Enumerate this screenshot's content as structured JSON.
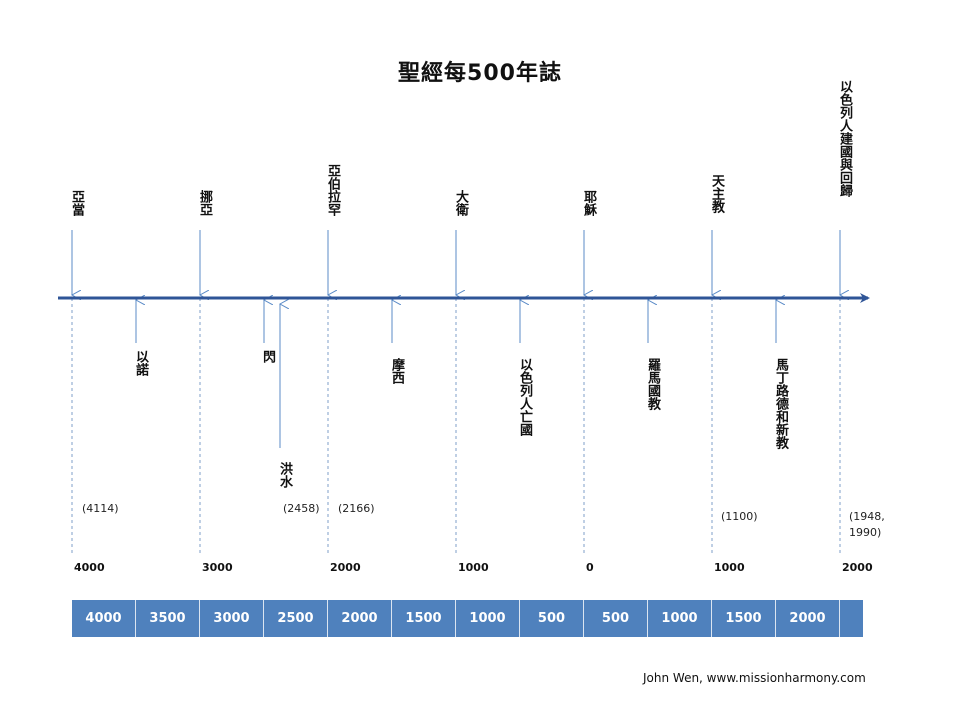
{
  "title": "聖經每500年誌",
  "upper_events": [
    {
      "label": "亞當"
    },
    {
      "label": "挪亞"
    },
    {
      "label": "亞伯拉罕"
    },
    {
      "label": "大衛"
    },
    {
      "label": "耶穌"
    },
    {
      "label": "天主教"
    },
    {
      "label": "以色列人建國與回歸"
    }
  ],
  "lower_events": [
    {
      "label": "以諾"
    },
    {
      "label": "閃"
    },
    {
      "label": "洪水"
    },
    {
      "label": "摩西"
    },
    {
      "label": "以色列人亡國"
    },
    {
      "label": "羅馬國教"
    },
    {
      "label": "馬丁路德和新教"
    }
  ],
  "year_notes": [
    "(4114)",
    "(2458)",
    "(2166)",
    "(1100)",
    "(1948,",
    "1990)"
  ],
  "axis_years": [
    "4000",
    "3000",
    "2000",
    "1000",
    "0",
    "1000",
    "2000"
  ],
  "bar_cells": [
    "4000",
    "3500",
    "3000",
    "2500",
    "2000",
    "1500",
    "1000",
    "500",
    "500",
    "1000",
    "1500",
    "2000"
  ],
  "colors": {
    "axis": "#2f5597",
    "arrow": "#5b8bc7",
    "dashed": "#7f9fc8",
    "bar": "#4f81bd"
  },
  "credit": "John Wen, www.missionharmony.com"
}
